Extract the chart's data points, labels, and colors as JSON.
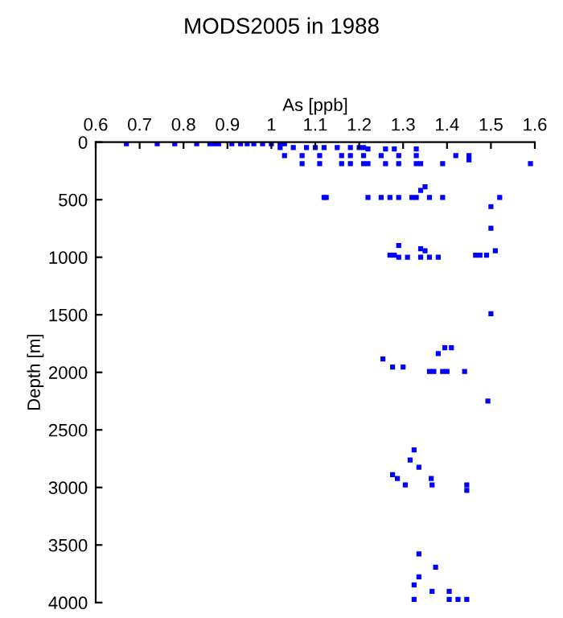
{
  "chart_data": {
    "type": "scatter",
    "title": "MODS2005 in 1988",
    "xlabel": "As [ppb]",
    "ylabel": "Depth [m]",
    "xlim": [
      0.6,
      1.6
    ],
    "xticks": [
      0.6,
      0.7,
      0.8,
      0.9,
      1,
      1.1,
      1.2,
      1.3,
      1.4,
      1.5,
      1.6
    ],
    "ylim": [
      4000,
      0
    ],
    "yticks": [
      0,
      500,
      1000,
      1500,
      2000,
      2500,
      3000,
      3500,
      4000
    ],
    "grid": false,
    "legend": false,
    "marker": "square",
    "series": [
      {
        "color": "#0000ff",
        "x": [
          0.67,
          0.74,
          0.78,
          0.83,
          0.86,
          0.87,
          0.88,
          0.91,
          0.93,
          0.945,
          0.96,
          0.98,
          1.0,
          1.02,
          1.03,
          1.02,
          1.05,
          1.08,
          1.1,
          1.12,
          1.15,
          1.18,
          1.2,
          1.21,
          1.22,
          1.26,
          1.28,
          1.33,
          1.03,
          1.07,
          1.11,
          1.16,
          1.18,
          1.21,
          1.25,
          1.29,
          1.33,
          1.42,
          1.45,
          1.45,
          1.07,
          1.11,
          1.16,
          1.18,
          1.21,
          1.22,
          1.26,
          1.29,
          1.33,
          1.34,
          1.39,
          1.59,
          1.35,
          1.34,
          1.12,
          1.125,
          1.22,
          1.25,
          1.27,
          1.29,
          1.32,
          1.33,
          1.36,
          1.39,
          1.52,
          1.5,
          1.5,
          1.29,
          1.34,
          1.35,
          1.51,
          1.27,
          1.28,
          1.465,
          1.475,
          1.49,
          1.29,
          1.31,
          1.34,
          1.36,
          1.38,
          1.5,
          1.395,
          1.41,
          1.38,
          1.254,
          1.276,
          1.3,
          1.36,
          1.37,
          1.39,
          1.4,
          1.44,
          1.493,
          1.325,
          1.316,
          1.336,
          1.276,
          1.287,
          1.364,
          1.305,
          1.366,
          1.445,
          1.445,
          1.336,
          1.374,
          1.336,
          1.325,
          1.366,
          1.405,
          1.325,
          1.405,
          1.425,
          1.445
        ],
        "values": [
          14,
          14,
          14,
          14,
          14,
          14,
          14,
          14,
          14,
          14,
          14,
          14,
          14,
          14,
          14,
          47,
          47,
          47,
          47,
          47,
          47,
          47,
          47,
          47,
          60,
          60,
          60,
          60,
          117,
          117,
          117,
          117,
          117,
          117,
          117,
          117,
          117,
          117,
          117,
          154,
          187,
          187,
          187,
          187,
          187,
          187,
          187,
          187,
          187,
          187,
          187,
          187,
          388,
          420,
          481,
          481,
          481,
          481,
          481,
          481,
          481,
          481,
          481,
          481,
          481,
          560,
          748,
          898,
          926,
          944,
          944,
          982,
          982,
          982,
          982,
          982,
          1000,
          1000,
          1000,
          1000,
          1000,
          1491,
          1786,
          1786,
          1837,
          1884,
          1954,
          1954,
          1992,
          1992,
          1992,
          1992,
          1992,
          2249,
          2674,
          2762,
          2824,
          2889,
          2922,
          2922,
          2978,
          2978,
          2978,
          3025,
          3577,
          3693,
          3777,
          3847,
          3903,
          3903,
          3973,
          3973,
          3973,
          3973
        ]
      }
    ]
  }
}
